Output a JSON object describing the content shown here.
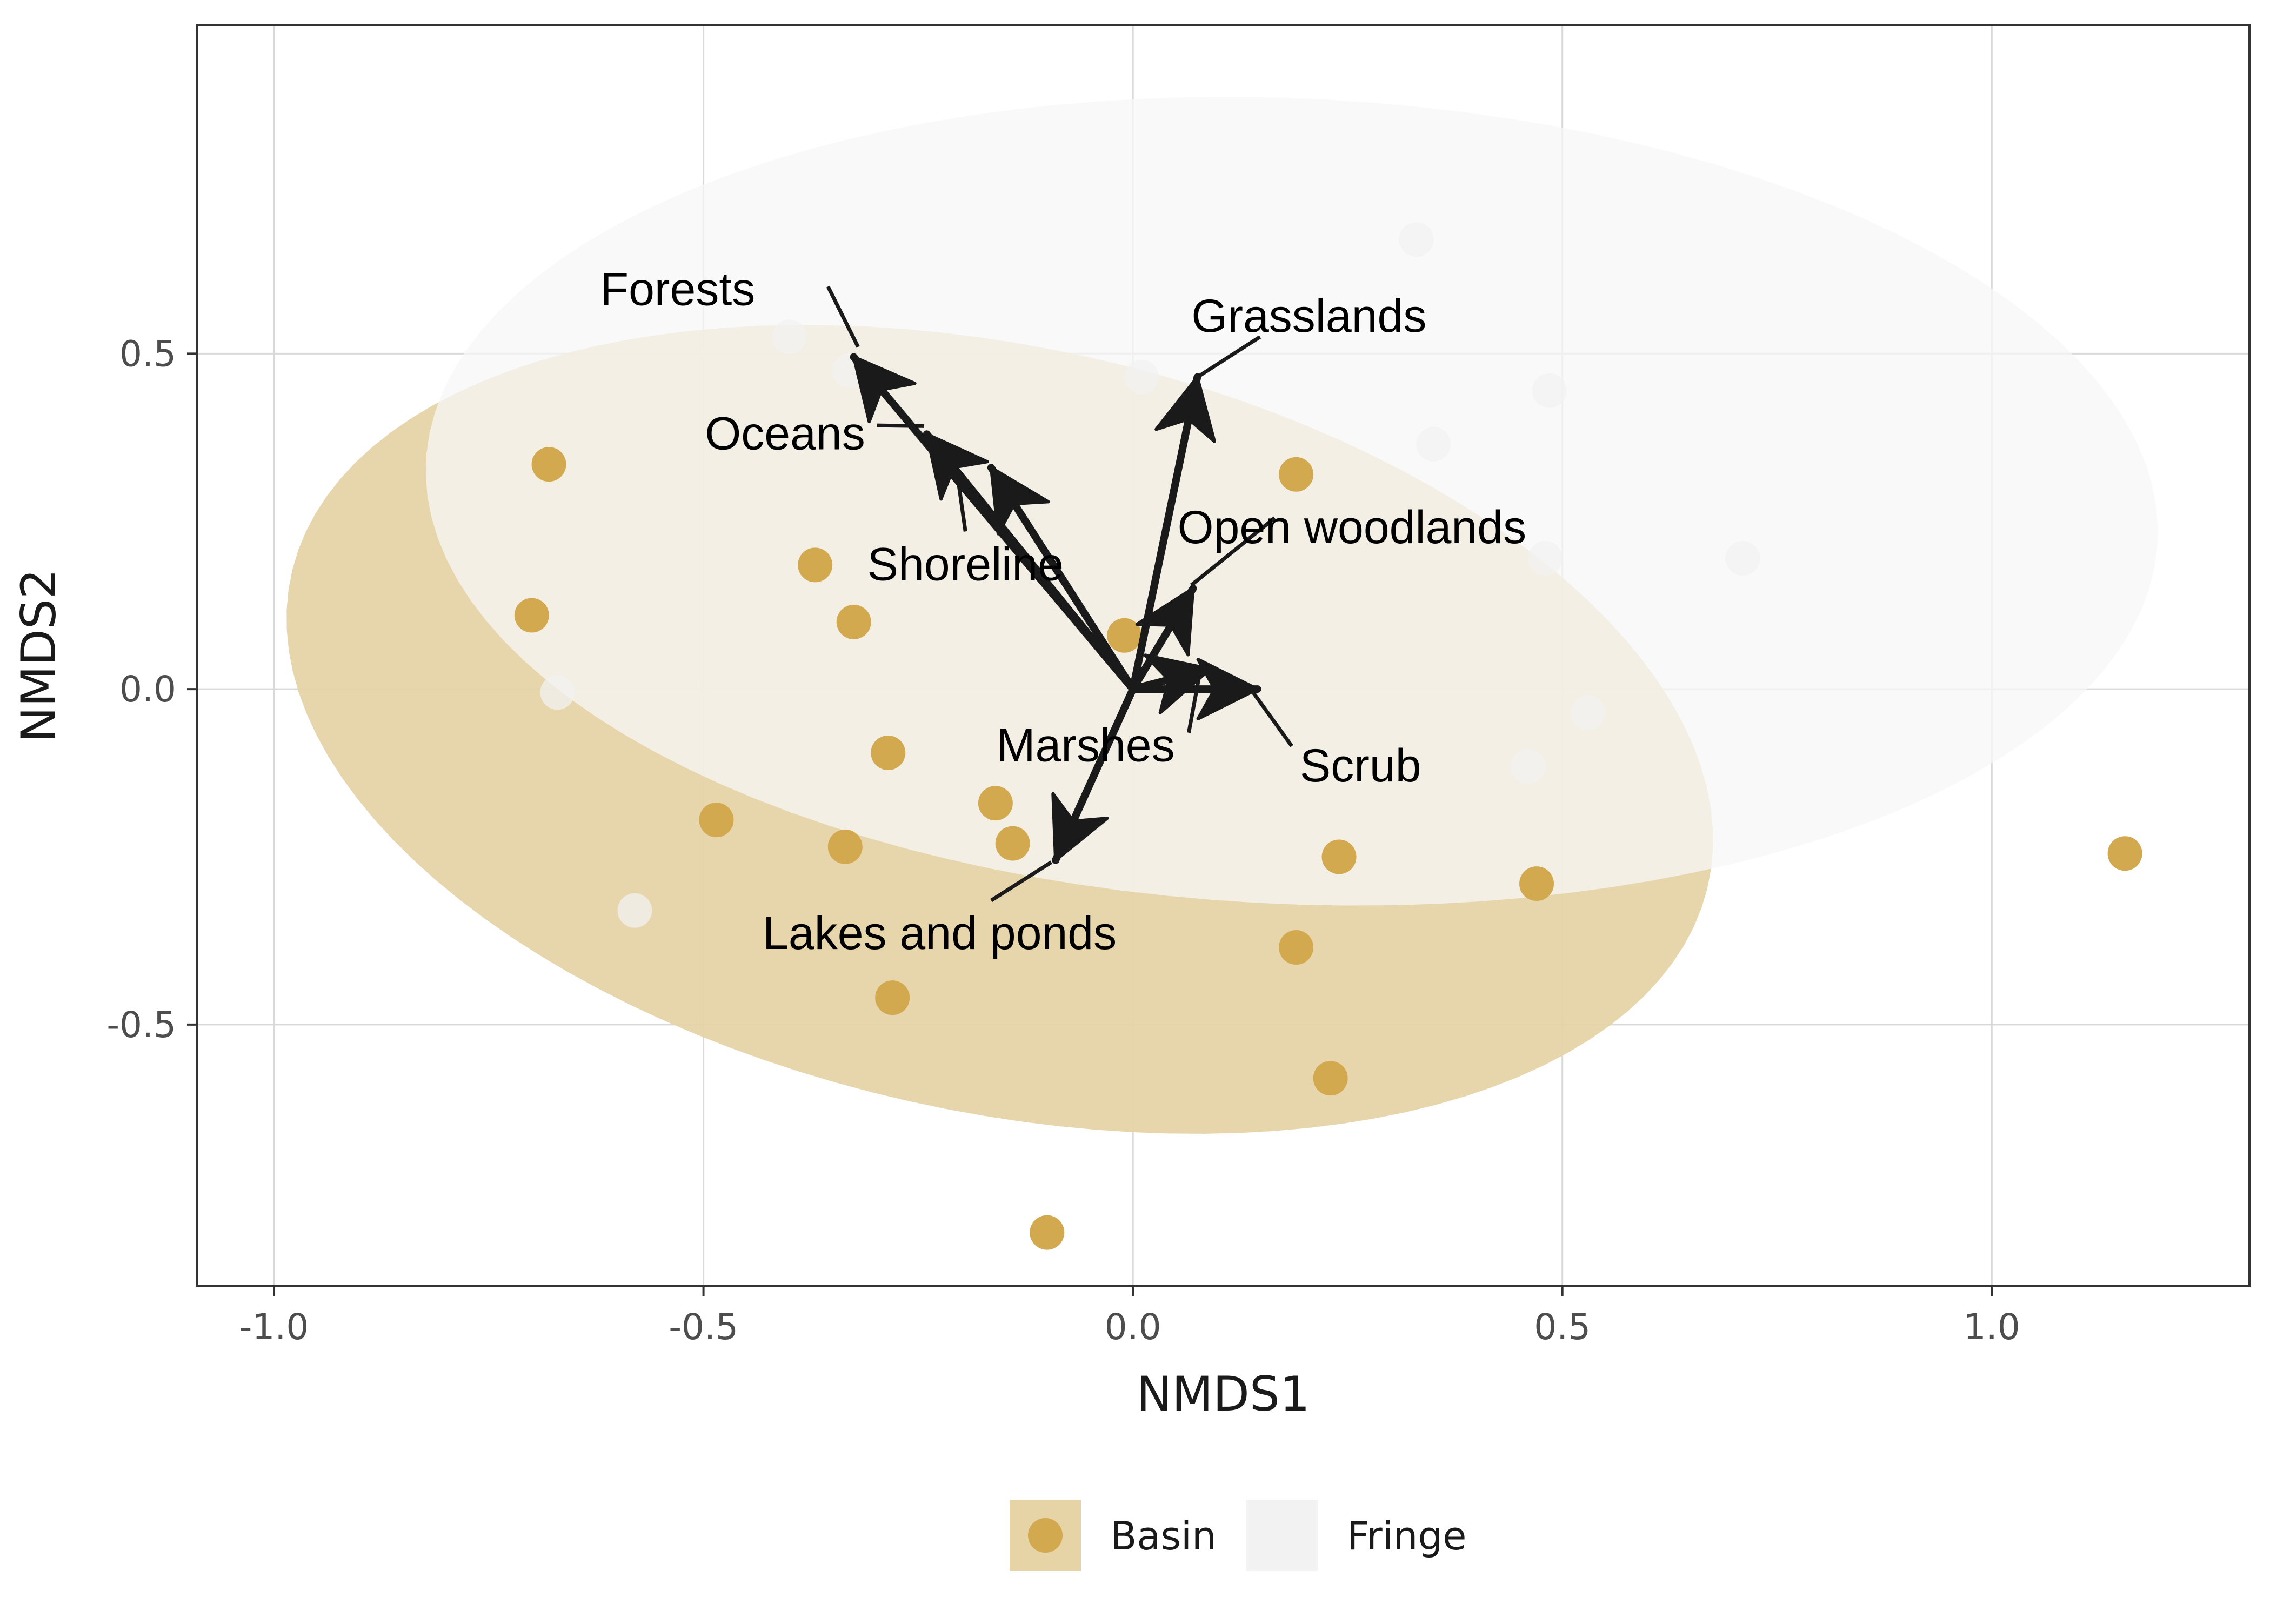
{
  "chart_data": {
    "type": "scatter",
    "subtype": "NMDS ordination with group ellipses and environmental fit arrows",
    "xlabel": "NMDS1",
    "ylabel": "NMDS2",
    "xlim": [
      -1.09,
      1.3
    ],
    "ylim": [
      -0.89,
      0.99
    ],
    "x_ticks": [
      -1.0,
      -0.5,
      0.0,
      0.5,
      1.0
    ],
    "x_tick_labels": [
      "-1.0",
      "-0.5",
      "0.0",
      "0.5",
      "1.0"
    ],
    "y_ticks": [
      -0.5,
      0.0,
      0.5
    ],
    "y_tick_labels": [
      "-0.5",
      "0.0",
      "0.5"
    ],
    "grid": true,
    "legend_position": "bottom",
    "legend": [
      {
        "name": "Basin",
        "color": "#D2A94E",
        "fill": "#E6D3A6"
      },
      {
        "name": "Fringe",
        "color": "#F2F2F2",
        "fill": "#F2F2F2"
      }
    ],
    "series": [
      {
        "name": "Basin",
        "color": "#D2A94E",
        "points": [
          {
            "x": -0.68,
            "y": 0.335
          },
          {
            "x": -0.37,
            "y": 0.185
          },
          {
            "x": -0.7,
            "y": 0.11
          },
          {
            "x": -0.325,
            "y": 0.1
          },
          {
            "x": -0.01,
            "y": 0.08
          },
          {
            "x": 0.19,
            "y": 0.32
          },
          {
            "x": -0.285,
            "y": -0.095
          },
          {
            "x": -0.16,
            "y": -0.17
          },
          {
            "x": -0.14,
            "y": -0.23
          },
          {
            "x": -0.335,
            "y": -0.235
          },
          {
            "x": -0.485,
            "y": -0.195
          },
          {
            "x": 0.24,
            "y": -0.25
          },
          {
            "x": 0.47,
            "y": -0.29
          },
          {
            "x": 0.19,
            "y": -0.385
          },
          {
            "x": -0.28,
            "y": -0.46
          },
          {
            "x": 0.23,
            "y": -0.58
          },
          {
            "x": -0.1,
            "y": -0.81
          },
          {
            "x": 1.155,
            "y": -0.245
          }
        ]
      },
      {
        "name": "Fringe",
        "color": "#F2F2F2",
        "points": [
          {
            "x": 0.33,
            "y": 0.67
          },
          {
            "x": -0.4,
            "y": 0.525
          },
          {
            "x": -0.33,
            "y": 0.475
          },
          {
            "x": 0.01,
            "y": 0.465
          },
          {
            "x": 0.485,
            "y": 0.445
          },
          {
            "x": 0.35,
            "y": 0.365
          },
          {
            "x": 0.48,
            "y": 0.195
          },
          {
            "x": 0.71,
            "y": 0.195
          },
          {
            "x": -0.67,
            "y": -0.005
          },
          {
            "x": 0.53,
            "y": -0.035
          },
          {
            "x": 0.46,
            "y": -0.115
          },
          {
            "x": -0.58,
            "y": -0.33
          }
        ]
      }
    ],
    "ellipses": [
      {
        "group": "Fringe",
        "cx": 0.2,
        "cy": 0.275,
        "rx_min": -0.83,
        "rx_max": 1.2
      },
      {
        "group": "Basin",
        "cx": -0.155,
        "cy": -0.06,
        "tilt": "negative"
      }
    ],
    "arrows": [
      {
        "label": "Forests",
        "x": -0.325,
        "y": 0.495
      },
      {
        "label": "Oceans",
        "x": -0.24,
        "y": 0.38
      },
      {
        "label": "Shoreline",
        "x": -0.165,
        "y": 0.33
      },
      {
        "label": "Grasslands",
        "x": 0.075,
        "y": 0.465
      },
      {
        "label": "Open woodlands",
        "x": 0.07,
        "y": 0.15
      },
      {
        "label": "Marshes",
        "x": 0.09,
        "y": 0.03
      },
      {
        "label": "Scrub",
        "x": 0.145,
        "y": 0.0
      },
      {
        "label": "Lakes and ponds",
        "x": -0.09,
        "y": -0.255
      }
    ],
    "colors": {
      "basin_point": "#D2A94E",
      "basin_ellipse": "#E6D3A6",
      "fringe_point": "#F2F2F2",
      "fringe_ellipse": "#F7F7F7",
      "arrow": "#1a1a1a",
      "grid": "#D9D9D9"
    }
  }
}
